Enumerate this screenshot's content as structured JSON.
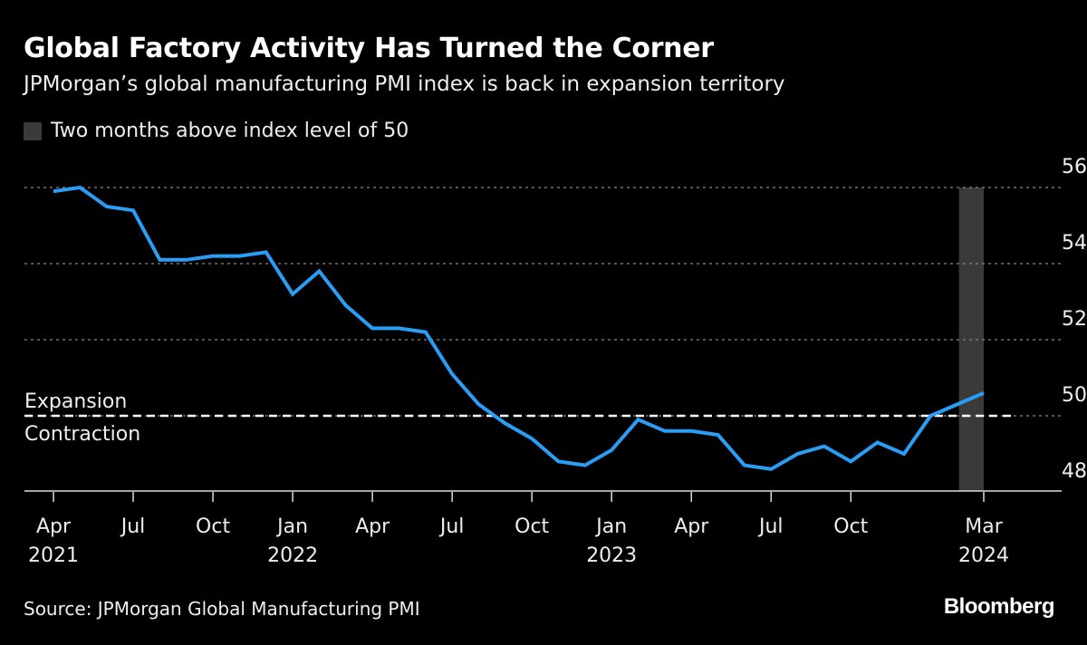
{
  "title": "Global Factory Activity Has Turned the Corner",
  "subtitle": "JPMorgan’s global manufacturing PMI index is back in expansion territory",
  "legend": {
    "label": "Two months above index level of 50",
    "color": "#3a3a3a"
  },
  "source": "Source: JPMorgan Global Manufacturing PMI",
  "brand": "Bloomberg",
  "chart_data": {
    "type": "line",
    "title": "Global Factory Activity Has Turned the Corner",
    "ylim": [
      48,
      56
    ],
    "yticks": [
      48,
      50,
      52,
      54,
      56
    ],
    "grid": true,
    "line_color": "#2a9df4",
    "x": [
      "2021-04",
      "2021-05",
      "2021-06",
      "2021-07",
      "2021-08",
      "2021-09",
      "2021-10",
      "2021-11",
      "2021-12",
      "2022-01",
      "2022-02",
      "2022-03",
      "2022-04",
      "2022-05",
      "2022-06",
      "2022-07",
      "2022-08",
      "2022-09",
      "2022-10",
      "2022-11",
      "2022-12",
      "2023-01",
      "2023-02",
      "2023-03",
      "2023-04",
      "2023-05",
      "2023-06",
      "2023-07",
      "2023-08",
      "2023-09",
      "2023-10",
      "2023-11",
      "2023-12",
      "2024-01",
      "2024-02",
      "2024-03"
    ],
    "values": [
      55.9,
      56.0,
      55.5,
      55.4,
      54.1,
      54.1,
      54.2,
      54.2,
      54.3,
      53.2,
      53.8,
      52.9,
      52.3,
      52.3,
      52.2,
      51.1,
      50.3,
      49.8,
      49.4,
      48.8,
      48.7,
      49.1,
      49.9,
      49.6,
      49.6,
      49.5,
      48.7,
      48.6,
      49.0,
      49.2,
      48.8,
      49.3,
      49.0,
      50.0,
      50.3,
      50.6
    ],
    "xticks": [
      {
        "x": "2021-04",
        "label": "Apr",
        "year": "2021"
      },
      {
        "x": "2021-07",
        "label": "Jul",
        "year": ""
      },
      {
        "x": "2021-10",
        "label": "Oct",
        "year": ""
      },
      {
        "x": "2022-01",
        "label": "Jan",
        "year": "2022"
      },
      {
        "x": "2022-04",
        "label": "Apr",
        "year": ""
      },
      {
        "x": "2022-07",
        "label": "Jul",
        "year": ""
      },
      {
        "x": "2022-10",
        "label": "Oct",
        "year": ""
      },
      {
        "x": "2023-01",
        "label": "Jan",
        "year": "2023"
      },
      {
        "x": "2023-04",
        "label": "Apr",
        "year": ""
      },
      {
        "x": "2023-07",
        "label": "Jul",
        "year": ""
      },
      {
        "x": "2023-10",
        "label": "Oct",
        "year": ""
      },
      {
        "x": "2024-03",
        "label": "Mar",
        "year": "2024"
      }
    ],
    "reference_line": {
      "value": 50,
      "above_label": "Expansion",
      "below_label": "Contraction"
    },
    "shaded_range": [
      "2024-02",
      "2024-03"
    ]
  }
}
